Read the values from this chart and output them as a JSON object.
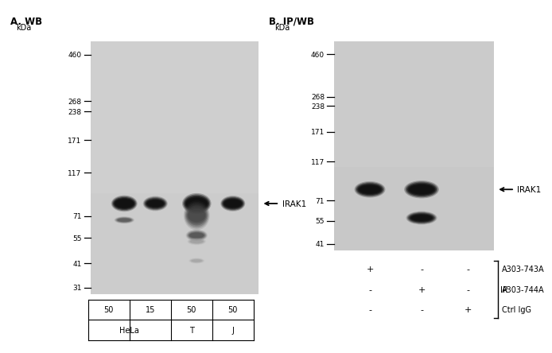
{
  "panel_A_title": "A. WB",
  "panel_B_title": "B. IP/WB",
  "marker_label": "kDa",
  "markers_A": [
    460,
    268,
    238,
    171,
    117,
    71,
    55,
    41,
    31
  ],
  "markers_B": [
    460,
    268,
    238,
    171,
    117,
    71,
    55,
    41
  ],
  "irak1_label": "IRAK1",
  "ip_label": "IP",
  "panel_A_amounts": [
    "50",
    "15",
    "50",
    "50"
  ],
  "panel_A_cell_labels": [
    "HeLa",
    "T",
    "J"
  ],
  "panel_B_rows": [
    [
      "+",
      "-",
      "-",
      "A303-743A"
    ],
    [
      "-",
      "+",
      "-",
      "A303-744A"
    ],
    [
      "-",
      "-",
      "+",
      "Ctrl IgG"
    ]
  ],
  "blot_bg_A": "#cccccc",
  "blot_bg_B": "#c8c8c8",
  "band_dark": "#111111",
  "band_med": "#444444",
  "band_light": "#999999",
  "fig_bg": "#ffffff",
  "marker_dash_styles": [
    "-",
    "_",
    "-",
    "-",
    "-",
    "-",
    "-",
    "-",
    "-"
  ]
}
